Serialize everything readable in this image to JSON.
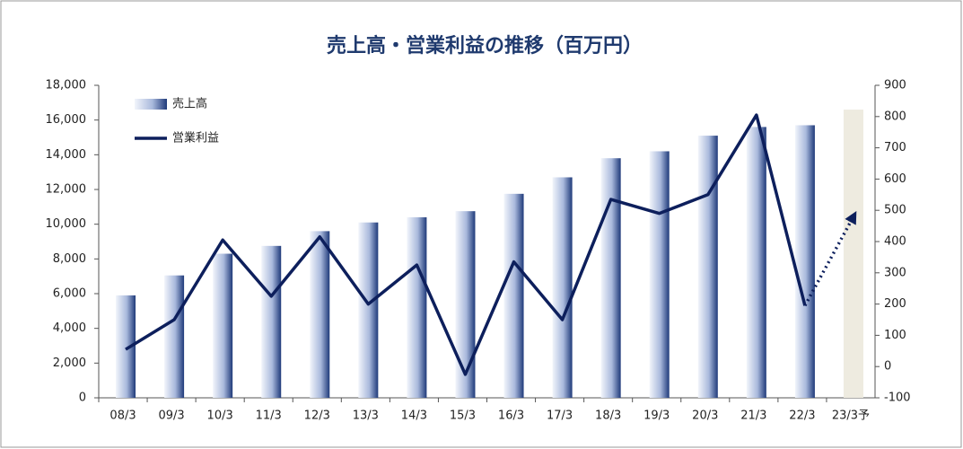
{
  "chart_data": {
    "type": "bar_line",
    "title": "売上高・営業利益の推移（百万円）",
    "categories": [
      "08/3",
      "09/3",
      "10/3",
      "11/3",
      "12/3",
      "13/3",
      "14/3",
      "15/3",
      "16/3",
      "17/3",
      "18/3",
      "19/3",
      "20/3",
      "21/3",
      "22/3",
      "23/3予"
    ],
    "series": [
      {
        "name": "売上高",
        "type": "bar",
        "color": "#1f3a7a",
        "forecast_color": "#eeebe0",
        "values": [
          5900,
          7050,
          8300,
          8750,
          9600,
          10100,
          10400,
          10750,
          11750,
          12700,
          13800,
          14200,
          15100,
          15600,
          15700,
          16600
        ]
      },
      {
        "name": "営業利益",
        "type": "line",
        "axis": "y2",
        "color": "#0d1f5c",
        "forecast_dotted": true,
        "values": [
          55,
          150,
          405,
          225,
          415,
          200,
          325,
          -25,
          335,
          150,
          535,
          490,
          550,
          805,
          195,
          480
        ]
      }
    ],
    "ylim": [
      0,
      18000
    ],
    "yticks": [
      0,
      {
        "value": 2000,
        "label": "2,000"
      },
      {
        "value": 4000,
        "label": "4,000"
      },
      {
        "value": 6000,
        "label": "6,000"
      },
      {
        "value": 8000,
        "label": "8,000"
      },
      {
        "value": 10000,
        "label": "10,000"
      },
      {
        "value": 12000,
        "label": "12,000"
      },
      {
        "value": 14000,
        "label": "14,000"
      },
      {
        "value": 16000,
        "label": "16,000"
      },
      {
        "value": 18000,
        "label": "18,000"
      }
    ],
    "y2lim": [
      -100,
      900
    ],
    "y2ticks": [
      -100,
      0,
      100,
      200,
      300,
      400,
      500,
      600,
      700,
      800,
      900
    ],
    "negative_tick_color": "#c00000",
    "grid": false,
    "legend": "top-left"
  }
}
